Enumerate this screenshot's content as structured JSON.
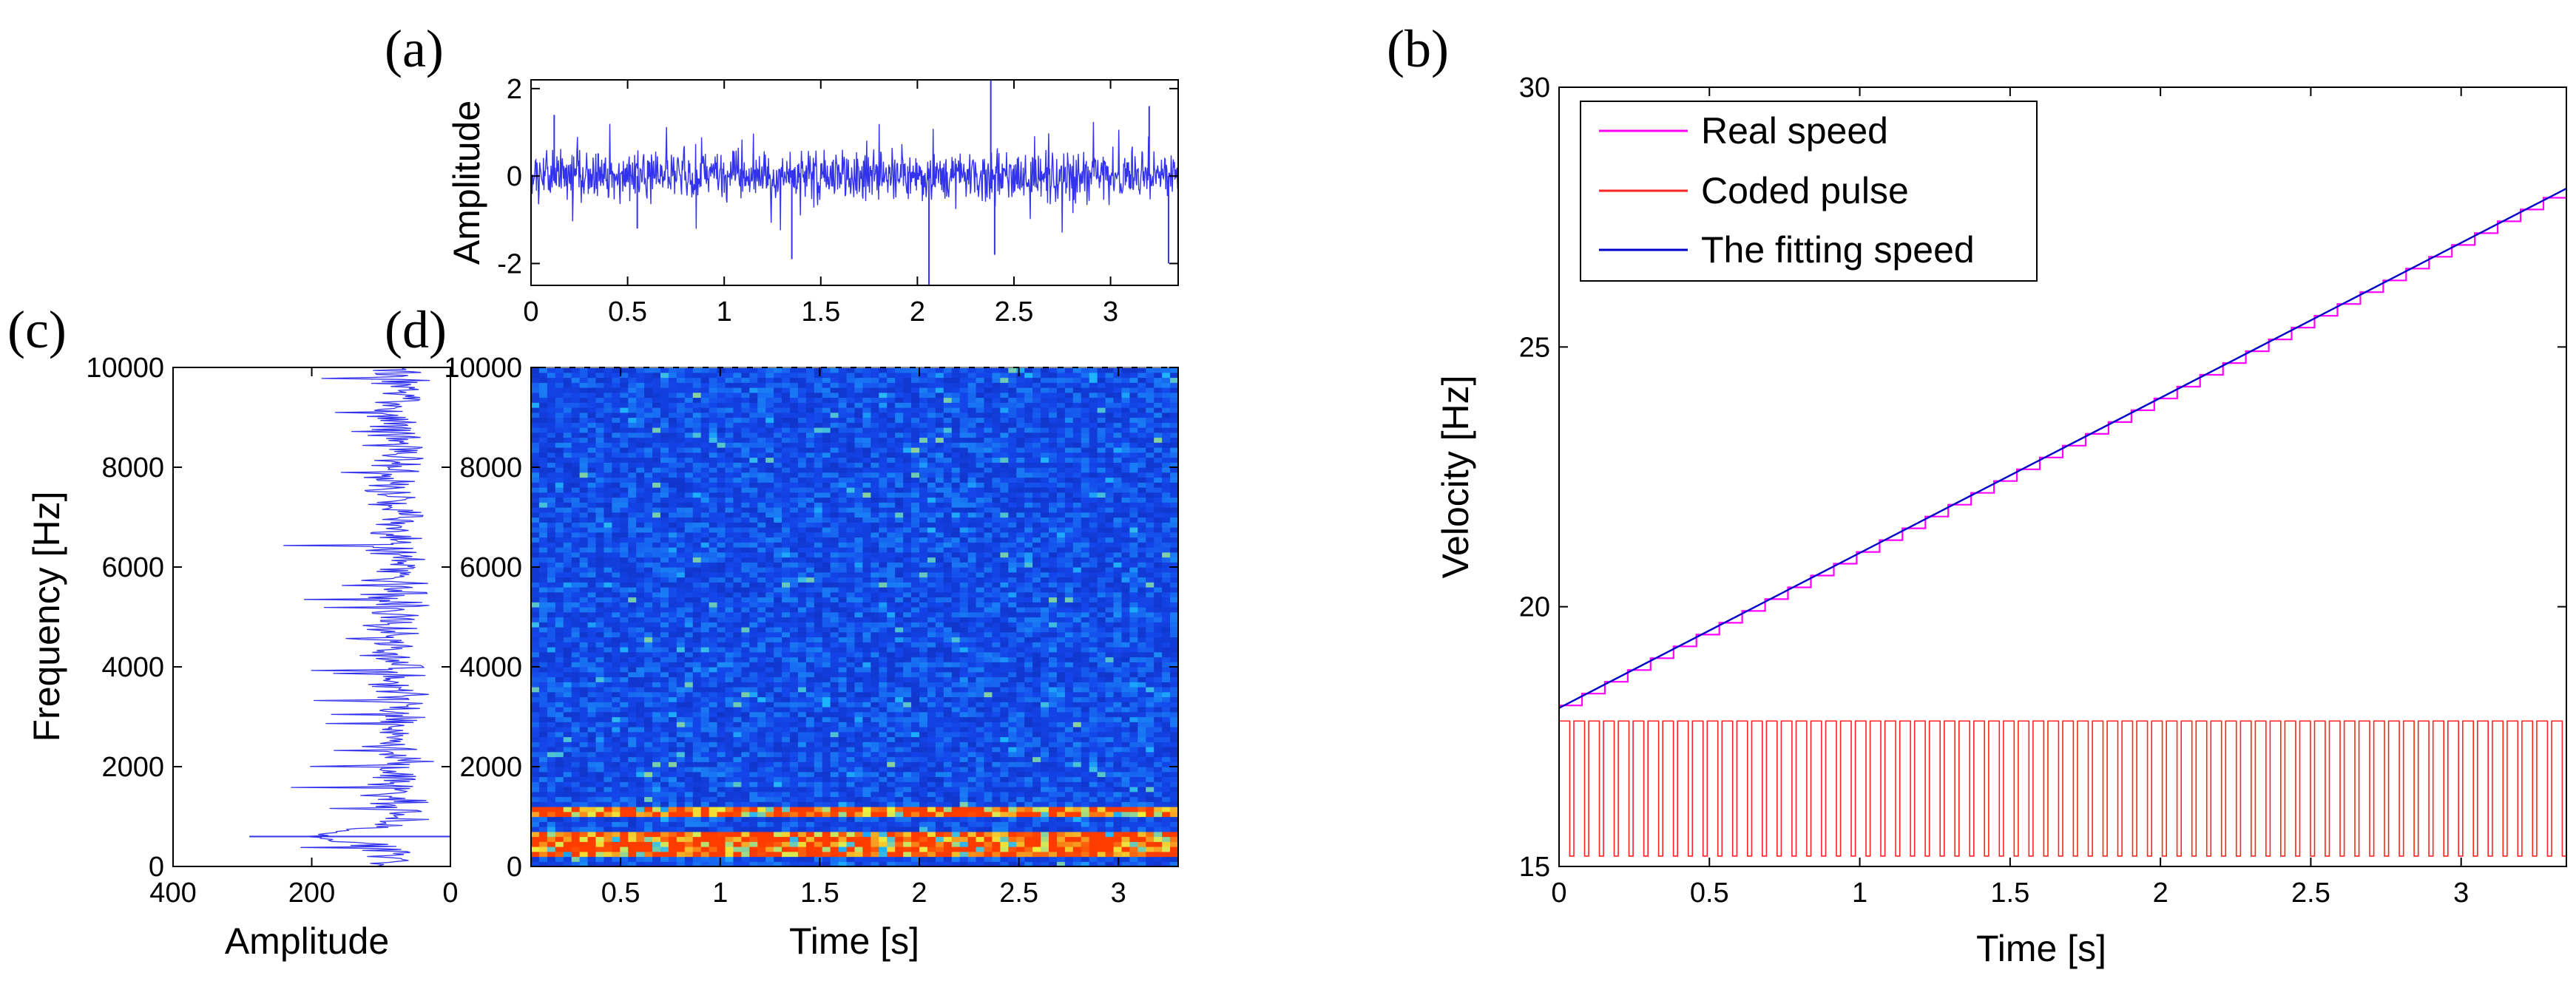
{
  "panel_labels": {
    "a": "(a)",
    "b": "(b)",
    "c": "(c)",
    "d": "(d)"
  },
  "colors": {
    "waveform": "#3333ee",
    "real_speed": "#ff00ff",
    "coded_pulse": "#ff2222",
    "fitting_speed": "#0000cc",
    "spectrogram_low": "#0a1e9a",
    "spectrogram_high": "#ff3a00"
  },
  "chart_data": [
    {
      "panel": "(a)",
      "type": "line",
      "title": "",
      "xlabel": "",
      "ylabel": "Amplitude",
      "xlim": [
        0,
        3.35
      ],
      "ylim": [
        -2.5,
        2.2
      ],
      "xticks": [
        "0",
        "0.5",
        "1",
        "1.5",
        "2",
        "2.5",
        "3"
      ],
      "yticks": [
        "-2",
        "0",
        "2"
      ],
      "series": [
        {
          "description": "vibration waveform",
          "samples": 1200,
          "envelope_typical": 0.6,
          "peak_max": 2.2,
          "peak_min": -2.5
        }
      ]
    },
    {
      "panel": "(b)",
      "type": "line",
      "title": "",
      "xlabel": "Time [s]",
      "ylabel": "Velocity [Hz]",
      "xlim": [
        0,
        3.35
      ],
      "ylim": [
        15,
        30
      ],
      "xticks": [
        "0",
        "0.5",
        "1",
        "1.5",
        "2",
        "2.5",
        "3"
      ],
      "yticks": [
        "15",
        "20",
        "25",
        "30"
      ],
      "legend_position": "top-left",
      "series": [
        {
          "name": "Real speed",
          "x": [
            0,
            3.35
          ],
          "y": [
            18.1,
            28.1
          ],
          "style": "staircase"
        },
        {
          "name": "Coded pulse",
          "low": 15.2,
          "high": 17.8,
          "pulse_count": 68
        },
        {
          "name": "The fitting speed",
          "x": [
            0,
            3.35
          ],
          "y": [
            18.05,
            28.05
          ]
        }
      ]
    },
    {
      "panel": "(c)",
      "type": "line",
      "title": "",
      "xlabel": "Amplitude",
      "ylabel": "Frequency [Hz]",
      "xlim": [
        400,
        0
      ],
      "ylim": [
        0,
        10000
      ],
      "xticks": [
        "400",
        "200",
        "0"
      ],
      "yticks": [
        "0",
        "2000",
        "4000",
        "6000",
        "8000",
        "10000"
      ],
      "series": [
        {
          "description": "marginal spectrum",
          "peak_amplitude": 290,
          "peak_frequency": 600,
          "typical_amplitude": 80
        }
      ]
    },
    {
      "panel": "(d)",
      "type": "heatmap",
      "title": "",
      "xlabel": "Time [s]",
      "ylabel": "",
      "xlim": [
        0.05,
        3.3
      ],
      "ylim": [
        0,
        10000
      ],
      "xticks": [
        "0.5",
        "1",
        "1.5",
        "2",
        "2.5",
        "3"
      ],
      "yticks": [
        "0",
        "2000",
        "4000",
        "6000",
        "8000",
        "10000"
      ],
      "rows": 100,
      "cols": 80,
      "hot_bands_hz": [
        350,
        600,
        1100
      ]
    }
  ]
}
